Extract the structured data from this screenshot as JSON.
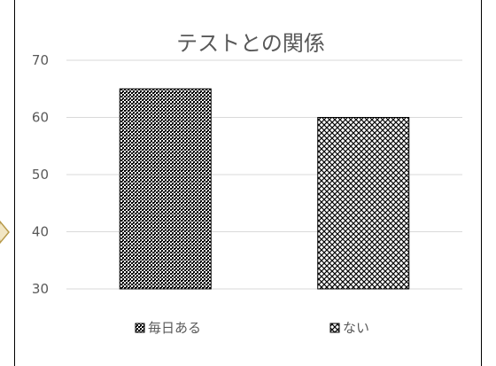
{
  "chart_data": {
    "type": "bar",
    "title": "テストとの関係",
    "categories": [
      "毎日ある",
      "ない"
    ],
    "values": [
      65,
      60
    ],
    "ylim": [
      30,
      70
    ],
    "yticks": [
      30,
      40,
      50,
      60,
      70
    ],
    "grid": true,
    "legend_position": "bottom",
    "series_styles": [
      {
        "pattern": "dense-dots",
        "color": "#000000"
      },
      {
        "pattern": "diamond-lattice",
        "color": "#000000"
      }
    ],
    "colors": {
      "grid": "#d9d9d9",
      "text": "#595959",
      "frame": "#000000",
      "arrow_fill": "#f2e6c4",
      "arrow_stroke": "#b89b4b"
    }
  }
}
